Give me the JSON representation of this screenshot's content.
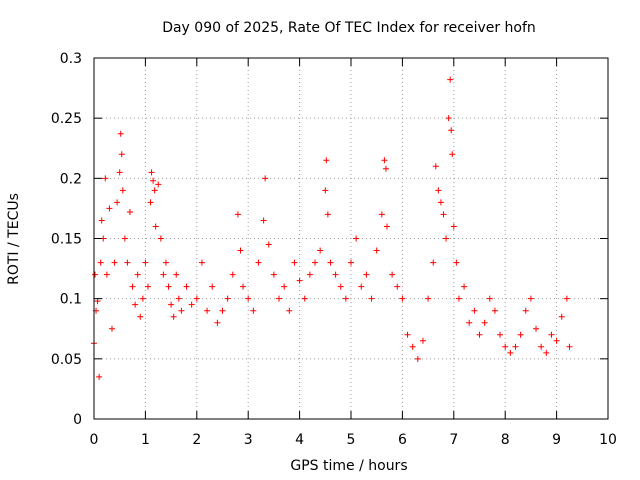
{
  "chart_data": {
    "type": "scatter",
    "title": "Day 090 of 2025, Rate Of TEC Index for receiver hofn",
    "xlabel": "GPS time / hours",
    "ylabel": "ROTI / TECUs",
    "xlim": [
      0,
      10
    ],
    "ylim": [
      0,
      0.3
    ],
    "xticks": [
      "0",
      "1",
      "2",
      "3",
      "4",
      "5",
      "6",
      "7",
      "8",
      "9",
      "10"
    ],
    "yticks": [
      "0",
      "0.05",
      "0.1",
      "0.15",
      "0.2",
      "0.25",
      "0.3"
    ],
    "grid": true,
    "marker": "+",
    "color": "#ff0000",
    "series": [
      {
        "name": "ROTI",
        "points": [
          [
            0.0,
            0.063
          ],
          [
            0.02,
            0.12
          ],
          [
            0.04,
            0.09
          ],
          [
            0.07,
            0.098
          ],
          [
            0.1,
            0.035
          ],
          [
            0.13,
            0.13
          ],
          [
            0.15,
            0.165
          ],
          [
            0.18,
            0.15
          ],
          [
            0.22,
            0.2
          ],
          [
            0.25,
            0.12
          ],
          [
            0.3,
            0.175
          ],
          [
            0.35,
            0.075
          ],
          [
            0.4,
            0.13
          ],
          [
            0.45,
            0.18
          ],
          [
            0.5,
            0.205
          ],
          [
            0.52,
            0.237
          ],
          [
            0.54,
            0.22
          ],
          [
            0.56,
            0.19
          ],
          [
            0.6,
            0.15
          ],
          [
            0.65,
            0.13
          ],
          [
            0.7,
            0.172
          ],
          [
            0.75,
            0.11
          ],
          [
            0.8,
            0.095
          ],
          [
            0.85,
            0.12
          ],
          [
            0.9,
            0.085
          ],
          [
            0.95,
            0.1
          ],
          [
            1.0,
            0.13
          ],
          [
            1.05,
            0.11
          ],
          [
            1.1,
            0.18
          ],
          [
            1.12,
            0.205
          ],
          [
            1.15,
            0.198
          ],
          [
            1.18,
            0.19
          ],
          [
            1.2,
            0.16
          ],
          [
            1.25,
            0.195
          ],
          [
            1.3,
            0.15
          ],
          [
            1.35,
            0.12
          ],
          [
            1.4,
            0.13
          ],
          [
            1.45,
            0.11
          ],
          [
            1.5,
            0.095
          ],
          [
            1.55,
            0.085
          ],
          [
            1.6,
            0.12
          ],
          [
            1.65,
            0.1
          ],
          [
            1.7,
            0.09
          ],
          [
            1.8,
            0.11
          ],
          [
            1.9,
            0.095
          ],
          [
            2.0,
            0.1
          ],
          [
            2.1,
            0.13
          ],
          [
            2.2,
            0.09
          ],
          [
            2.3,
            0.11
          ],
          [
            2.4,
            0.08
          ],
          [
            2.5,
            0.09
          ],
          [
            2.6,
            0.1
          ],
          [
            2.7,
            0.12
          ],
          [
            2.8,
            0.17
          ],
          [
            2.85,
            0.14
          ],
          [
            2.9,
            0.11
          ],
          [
            3.0,
            0.1
          ],
          [
            3.1,
            0.09
          ],
          [
            3.2,
            0.13
          ],
          [
            3.3,
            0.165
          ],
          [
            3.33,
            0.2
          ],
          [
            3.4,
            0.145
          ],
          [
            3.5,
            0.12
          ],
          [
            3.6,
            0.1
          ],
          [
            3.7,
            0.11
          ],
          [
            3.8,
            0.09
          ],
          [
            3.9,
            0.13
          ],
          [
            4.0,
            0.115
          ],
          [
            4.1,
            0.1
          ],
          [
            4.2,
            0.12
          ],
          [
            4.3,
            0.13
          ],
          [
            4.4,
            0.14
          ],
          [
            4.5,
            0.19
          ],
          [
            4.52,
            0.215
          ],
          [
            4.55,
            0.17
          ],
          [
            4.6,
            0.13
          ],
          [
            4.7,
            0.12
          ],
          [
            4.8,
            0.11
          ],
          [
            4.9,
            0.1
          ],
          [
            5.0,
            0.13
          ],
          [
            5.1,
            0.15
          ],
          [
            5.2,
            0.11
          ],
          [
            5.3,
            0.12
          ],
          [
            5.4,
            0.1
          ],
          [
            5.5,
            0.14
          ],
          [
            5.6,
            0.17
          ],
          [
            5.65,
            0.215
          ],
          [
            5.68,
            0.208
          ],
          [
            5.7,
            0.16
          ],
          [
            5.8,
            0.12
          ],
          [
            5.9,
            0.11
          ],
          [
            6.0,
            0.1
          ],
          [
            6.1,
            0.07
          ],
          [
            6.2,
            0.06
          ],
          [
            6.3,
            0.05
          ],
          [
            6.4,
            0.065
          ],
          [
            6.5,
            0.1
          ],
          [
            6.6,
            0.13
          ],
          [
            6.65,
            0.21
          ],
          [
            6.7,
            0.19
          ],
          [
            6.75,
            0.18
          ],
          [
            6.8,
            0.17
          ],
          [
            6.85,
            0.15
          ],
          [
            6.9,
            0.25
          ],
          [
            6.93,
            0.282
          ],
          [
            6.95,
            0.24
          ],
          [
            6.97,
            0.22
          ],
          [
            7.0,
            0.16
          ],
          [
            7.05,
            0.13
          ],
          [
            7.1,
            0.1
          ],
          [
            7.2,
            0.11
          ],
          [
            7.3,
            0.08
          ],
          [
            7.4,
            0.09
          ],
          [
            7.5,
            0.07
          ],
          [
            7.6,
            0.08
          ],
          [
            7.7,
            0.1
          ],
          [
            7.8,
            0.09
          ],
          [
            7.9,
            0.07
          ],
          [
            8.0,
            0.06
          ],
          [
            8.1,
            0.055
          ],
          [
            8.2,
            0.06
          ],
          [
            8.3,
            0.07
          ],
          [
            8.4,
            0.09
          ],
          [
            8.5,
            0.1
          ],
          [
            8.6,
            0.075
          ],
          [
            8.7,
            0.06
          ],
          [
            8.8,
            0.055
          ],
          [
            8.9,
            0.07
          ],
          [
            9.0,
            0.065
          ],
          [
            9.1,
            0.085
          ],
          [
            9.2,
            0.1
          ],
          [
            9.25,
            0.06
          ]
        ]
      }
    ]
  }
}
